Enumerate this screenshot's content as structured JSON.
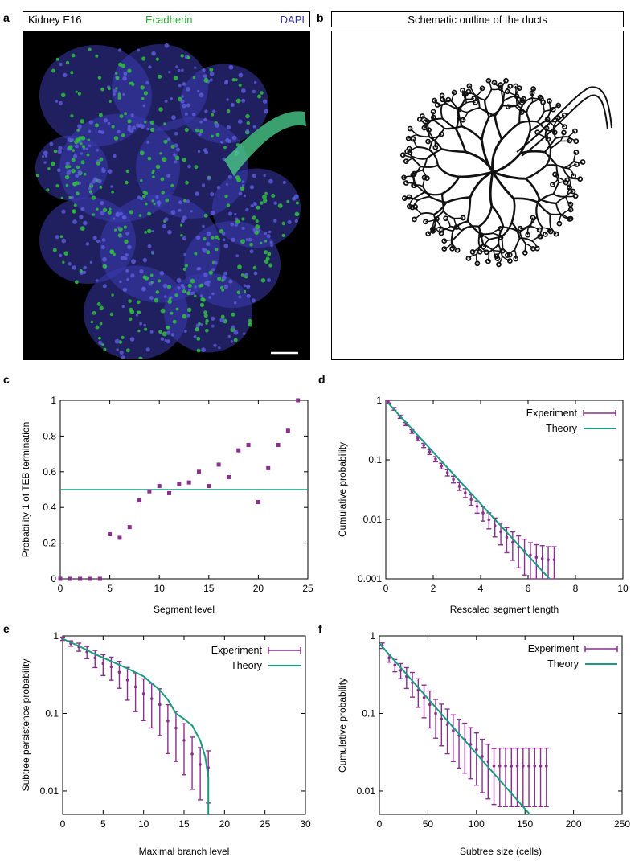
{
  "panel_a": {
    "letter": "a",
    "header_left": "Kidney E16",
    "header_mid": "Ecadherin",
    "header_right": "DAPI",
    "colors": {
      "ecadherin": "#2fbf3c",
      "dapi": "#3b3bb0",
      "background": "#000000"
    }
  },
  "panel_b": {
    "letter": "b",
    "header": "Schematic outline of the ducts"
  },
  "chart_data": [
    {
      "id": "c",
      "letter": "c",
      "type": "scatter",
      "title": "",
      "xlabel": "Segment level",
      "ylabel": "Probability 1 of TEB termination",
      "xlim": [
        0,
        25
      ],
      "ylim": [
        0,
        1
      ],
      "xticks": [
        "0",
        "5",
        "10",
        "15",
        "20",
        "25"
      ],
      "yticks": [
        "0",
        "0.2",
        "0.4",
        "0.6",
        "0.8",
        "1"
      ],
      "series": [
        {
          "values_x": [
            0,
            1,
            2,
            3,
            4,
            5,
            6,
            7,
            8,
            9,
            10,
            11,
            12,
            13,
            14,
            15,
            16,
            17,
            18,
            19,
            20,
            21,
            22,
            23,
            24
          ],
          "values_y": [
            0,
            0,
            0,
            0,
            0,
            0.25,
            0.23,
            0.29,
            0.44,
            0.49,
            0.52,
            0.48,
            0.53,
            0.54,
            0.6,
            0.52,
            0.64,
            0.57,
            0.72,
            0.75,
            0.43,
            0.62,
            0.75,
            0.83,
            1.0
          ],
          "color": "#8b2f8f"
        }
      ],
      "reference_line": {
        "y": 0.5,
        "color": "#1a9a80"
      }
    },
    {
      "id": "d",
      "letter": "d",
      "type": "line",
      "title": "",
      "xlabel": "Rescaled segment length",
      "ylabel": "Cumulative probability",
      "xlim": [
        0,
        10
      ],
      "ylim": [
        0.001,
        1
      ],
      "log_y": true,
      "xticks": [
        "0",
        "2",
        "4",
        "6",
        "8",
        "10"
      ],
      "yticks": [
        "1",
        "0.1",
        "0.01",
        "0.001"
      ],
      "legend": [
        "Experiment",
        "Theory"
      ],
      "colors": {
        "experiment": "#8b2f8f",
        "theory": "#1a9a80"
      },
      "experiment": {
        "x": [
          0.1,
          0.35,
          0.6,
          0.85,
          1.1,
          1.35,
          1.6,
          1.85,
          2.1,
          2.35,
          2.6,
          2.85,
          3.1,
          3.35,
          3.6,
          3.85,
          4.1,
          4.35,
          4.6,
          4.85,
          5.1,
          5.35,
          5.6,
          5.85,
          6.1,
          6.35,
          6.6,
          6.85,
          7.1
        ],
        "y": [
          0.95,
          0.72,
          0.53,
          0.4,
          0.3,
          0.23,
          0.175,
          0.135,
          0.103,
          0.079,
          0.061,
          0.047,
          0.036,
          0.028,
          0.0215,
          0.0165,
          0.0128,
          0.0099,
          0.0078,
          0.0062,
          0.005,
          0.0041,
          0.0034,
          0.0029,
          0.0025,
          0.0023,
          0.0022,
          0.0021,
          0.0021
        ],
        "err_frac": [
          0.05,
          0.05,
          0.06,
          0.06,
          0.07,
          0.08,
          0.08,
          0.09,
          0.1,
          0.11,
          0.12,
          0.13,
          0.15,
          0.17,
          0.2,
          0.23,
          0.27,
          0.3,
          0.35,
          0.4,
          0.45,
          0.5,
          0.55,
          0.6,
          0.62,
          0.63,
          0.64,
          0.65,
          0.65
        ]
      },
      "theory": {
        "x": [
          0.1,
          6.9
        ],
        "y": [
          0.9,
          0.001
        ]
      }
    },
    {
      "id": "e",
      "letter": "e",
      "type": "line",
      "title": "",
      "xlabel": "Maximal branch level",
      "ylabel": "Subtree persistence probability",
      "xlim": [
        0,
        30
      ],
      "ylim": [
        0.005,
        1
      ],
      "log_y": true,
      "xticks": [
        "0",
        "5",
        "10",
        "15",
        "20",
        "25",
        "30"
      ],
      "yticks": [
        "1",
        "0.1",
        "0.01"
      ],
      "legend": [
        "Experiment",
        "Theory"
      ],
      "colors": {
        "experiment": "#8b2f8f",
        "theory": "#1a9a80"
      },
      "experiment": {
        "x": [
          0,
          1,
          2,
          3,
          4,
          5,
          6,
          7,
          8,
          9,
          10,
          11,
          12,
          13,
          14,
          15,
          16,
          17,
          18
        ],
        "y": [
          0.92,
          0.8,
          0.72,
          0.62,
          0.52,
          0.44,
          0.4,
          0.34,
          0.27,
          0.22,
          0.18,
          0.155,
          0.13,
          0.08,
          0.065,
          0.045,
          0.03,
          0.022,
          0.02
        ],
        "err_frac": [
          0.05,
          0.08,
          0.12,
          0.18,
          0.25,
          0.3,
          0.33,
          0.38,
          0.45,
          0.52,
          0.55,
          0.58,
          0.6,
          0.62,
          0.63,
          0.64,
          0.65,
          0.65,
          0.65
        ]
      },
      "theory": {
        "x": [
          0,
          2,
          4,
          6,
          8,
          10,
          12,
          13,
          14,
          15,
          16,
          17,
          17.6,
          18,
          18
        ],
        "y": [
          0.92,
          0.74,
          0.58,
          0.47,
          0.38,
          0.3,
          0.2,
          0.15,
          0.1,
          0.085,
          0.07,
          0.045,
          0.028,
          0.015,
          0.005
        ]
      }
    },
    {
      "id": "f",
      "letter": "f",
      "type": "line",
      "title": "",
      "xlabel": "Subtree size (cells)",
      "ylabel": "Cumulative probability",
      "xlim": [
        0,
        250
      ],
      "ylim": [
        0.005,
        1
      ],
      "log_y": true,
      "xticks": [
        "0",
        "50",
        "100",
        "150",
        "200",
        "250"
      ],
      "yticks": [
        "1",
        "0.1",
        "0.01"
      ],
      "legend": [
        "Experiment",
        "Theory"
      ],
      "colors": {
        "experiment": "#8b2f8f",
        "theory": "#1a9a80"
      },
      "experiment": {
        "x": [
          3,
          10,
          16,
          22,
          28,
          34,
          40,
          46,
          52,
          58,
          64,
          70,
          76,
          82,
          88,
          94,
          100,
          106,
          112,
          118,
          124,
          130,
          136,
          142,
          148,
          154,
          160,
          166,
          172
        ],
        "y": [
          0.75,
          0.52,
          0.42,
          0.36,
          0.3,
          0.25,
          0.2,
          0.16,
          0.13,
          0.1,
          0.085,
          0.072,
          0.06,
          0.052,
          0.046,
          0.04,
          0.034,
          0.028,
          0.024,
          0.021,
          0.021,
          0.021,
          0.021,
          0.021,
          0.021,
          0.021,
          0.021,
          0.021,
          0.021
        ],
        "err_frac": [
          0.08,
          0.12,
          0.18,
          0.22,
          0.3,
          0.35,
          0.4,
          0.45,
          0.5,
          0.52,
          0.55,
          0.58,
          0.6,
          0.62,
          0.63,
          0.64,
          0.65,
          0.66,
          0.67,
          0.68,
          0.7,
          0.7,
          0.7,
          0.7,
          0.7,
          0.7,
          0.7,
          0.7,
          0.7
        ]
      },
      "theory": {
        "x": [
          0,
          155
        ],
        "y": [
          0.8,
          0.005
        ]
      }
    }
  ]
}
